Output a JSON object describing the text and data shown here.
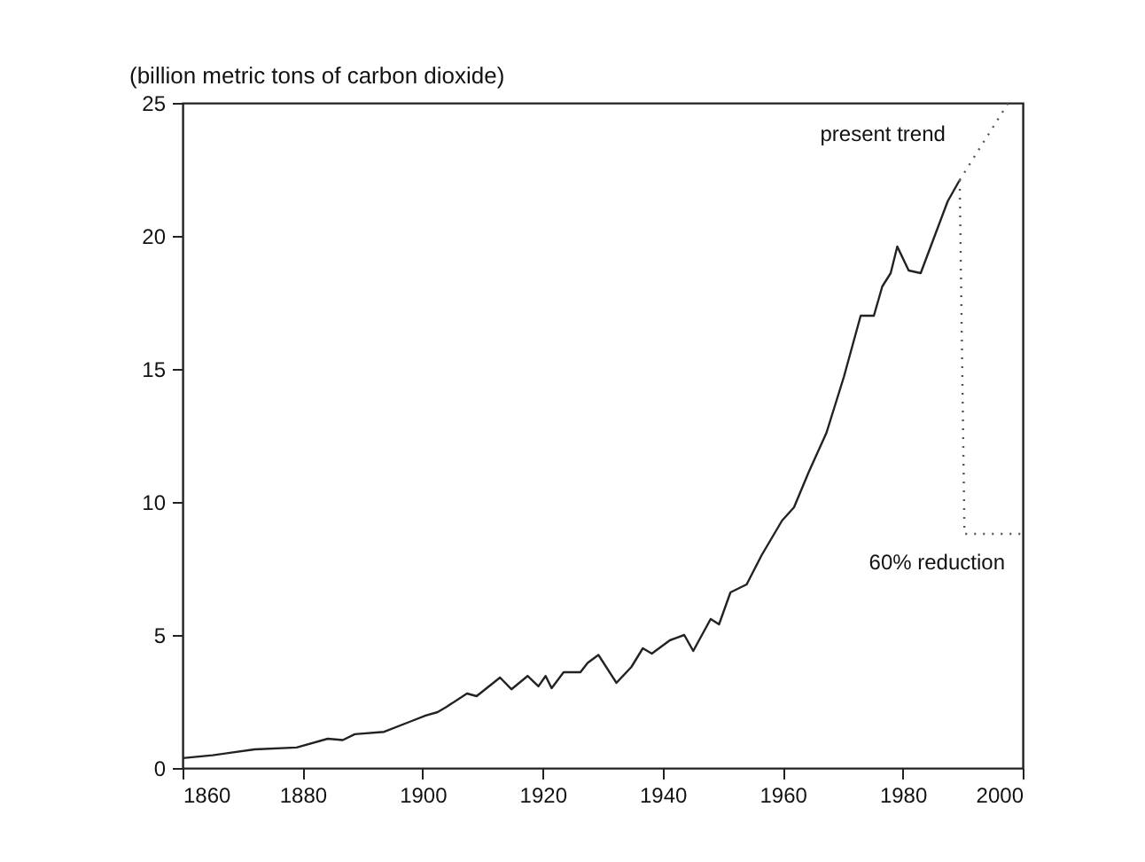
{
  "chart_data": {
    "type": "line",
    "ylabel": "(billion metric tons of carbon dioxide)",
    "xlim": [
      1860,
      2000
    ],
    "xticks": [
      1860,
      1880,
      1900,
      1920,
      1940,
      1960,
      1980,
      2000
    ],
    "ylim": [
      0,
      25
    ],
    "yticks": [
      0,
      5,
      10,
      15,
      20,
      25
    ],
    "grid": false,
    "series": [
      {
        "color": "#222222",
        "line_style": "solid",
        "x": [
          1860,
          1865,
          1872,
          1879,
          1884.2,
          1886.7,
          1888.7,
          1893.6,
          1898,
          1900.5,
          1902.5,
          1904,
          1907.4,
          1909,
          1912.9,
          1914.8,
          1917.5,
          1919.3,
          1920.5,
          1921.5,
          1923.5,
          1926.3,
          1927.5,
          1929.3,
          1932.3,
          1934.8,
          1936.7,
          1938.2,
          1941.2,
          1943.6,
          1945.1,
          1948,
          1949.4,
          1951.3,
          1954,
          1956.5,
          1959.9,
          1961.9,
          1964.3,
          1967.3,
          1970.2,
          1973,
          1975.2,
          1976.6,
          1978,
          1979.1,
          1981,
          1983,
          1985,
          1987.5,
          1989.5
        ],
        "values": [
          0.37,
          0.48,
          0.7,
          0.77,
          1.1,
          1.05,
          1.27,
          1.36,
          1.75,
          1.97,
          2.1,
          2.3,
          2.8,
          2.7,
          3.4,
          2.96,
          3.46,
          3.07,
          3.46,
          3.0,
          3.6,
          3.6,
          3.95,
          4.25,
          3.2,
          3.8,
          4.5,
          4.3,
          4.8,
          5.0,
          4.4,
          5.6,
          5.4,
          6.6,
          6.9,
          8.0,
          9.3,
          9.8,
          11.1,
          12.6,
          14.7,
          17.0,
          17.0,
          18.1,
          18.6,
          19.6,
          18.7,
          18.6,
          19.8,
          21.3,
          22.1
        ]
      },
      {
        "name": "present trend",
        "color": "#555555",
        "line_style": "dotted",
        "x": [
          1989.5,
          1997.6
        ],
        "values": [
          22.1,
          25
        ]
      },
      {
        "name": "60% reduction",
        "color": "#555555",
        "line_style": "dotted",
        "x": [
          1989.5,
          1990.3,
          2000
        ],
        "values": [
          22.1,
          8.8,
          8.8
        ]
      }
    ]
  }
}
